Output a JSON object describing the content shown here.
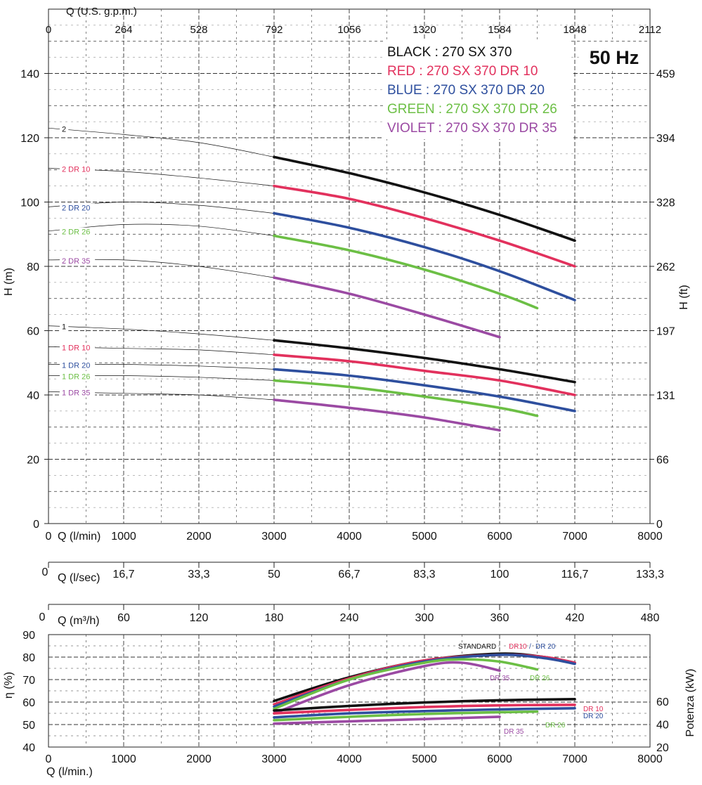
{
  "chart_data": {
    "type": "line",
    "title": "50 Hz",
    "legend": [
      {
        "text": "BLACK : 270 SX 370",
        "color": "#111111"
      },
      {
        "text": "RED : 270 SX 370 DR 10",
        "color": "#e2315d"
      },
      {
        "text": "BLUE : 270 SX 370 DR 20",
        "color": "#2e4f9e"
      },
      {
        "text": "GREEN : 270 SX 370 DR 26",
        "color": "#6cbf45"
      },
      {
        "text": "VIOLET : 270 SX 370 DR 35",
        "color": "#9b4aa3"
      }
    ],
    "axes": {
      "q_lmin": {
        "label": "Q (l/min)",
        "range": [
          0,
          8000
        ],
        "ticks": [
          "0",
          "1000",
          "2000",
          "3000",
          "4000",
          "5000",
          "6000",
          "7000",
          "8000"
        ]
      },
      "q_usgpm": {
        "label": "Q (U.S. g.p.m.)",
        "ticks": [
          "0",
          "264",
          "528",
          "792",
          "1056",
          "1320",
          "1584",
          "1848",
          "2112"
        ]
      },
      "q_lsec": {
        "label": "Q (l/sec)",
        "ticks": [
          "16,7",
          "33,3",
          "50",
          "66,7",
          "83,3",
          "100",
          "116,7",
          "133,3"
        ]
      },
      "q_m3h": {
        "label": "Q (m³/h)",
        "ticks": [
          "60",
          "120",
          "180",
          "240",
          "300",
          "360",
          "420",
          "480"
        ]
      },
      "h_m": {
        "label": "H (m)",
        "range": [
          0,
          150
        ],
        "ticks": [
          "0",
          "20",
          "40",
          "60",
          "80",
          "100",
          "120",
          "140"
        ]
      },
      "h_ft": {
        "label": "H (ft)",
        "ticks": [
          "0",
          "66",
          "131",
          "197",
          "262",
          "328",
          "394",
          "459"
        ]
      },
      "eff": {
        "label": "η (%)",
        "range": [
          40,
          90
        ],
        "ticks": [
          "40",
          "50",
          "60",
          "70",
          "80",
          "90"
        ]
      },
      "power": {
        "label": "Potenza (kW)",
        "ticks": [
          "20",
          "40",
          "60"
        ]
      },
      "bottom_q": {
        "label": "Q (l/min.)",
        "ticks": [
          "0",
          "1000",
          "2000",
          "3000",
          "4000",
          "5000",
          "6000",
          "7000",
          "8000"
        ]
      }
    },
    "head_curves": [
      {
        "label": "2",
        "color": "#111111",
        "q": [
          0,
          1000,
          2000,
          3000,
          4000,
          5000,
          6000,
          7000
        ],
        "h": [
          123,
          121,
          118.5,
          114,
          109,
          103,
          96,
          88
        ]
      },
      {
        "label": "2 DR 10",
        "color": "#e2315d",
        "q": [
          0,
          1000,
          2000,
          3000,
          4000,
          5000,
          6000,
          7000
        ],
        "h": [
          110.5,
          109.5,
          107.5,
          105,
          101,
          95,
          88,
          80
        ]
      },
      {
        "label": "2 DR 20",
        "color": "#2e4f9e",
        "q": [
          0,
          1000,
          2000,
          3000,
          4000,
          5000,
          6000,
          7000
        ],
        "h": [
          98.5,
          100,
          99,
          96.5,
          92,
          86,
          78.5,
          69.5
        ]
      },
      {
        "label": "2 DR 26",
        "color": "#6cbf45",
        "q": [
          0,
          1000,
          2000,
          3000,
          4000,
          5000,
          6000,
          6500
        ],
        "h": [
          91,
          93,
          92.5,
          89.5,
          85,
          79,
          71.5,
          67
        ]
      },
      {
        "label": "2 DR 35",
        "color": "#9b4aa3",
        "q": [
          0,
          1000,
          2000,
          3000,
          4000,
          5000,
          6000
        ],
        "h": [
          82,
          82,
          80,
          76.5,
          71.5,
          65,
          58
        ]
      },
      {
        "label": "1",
        "color": "#111111",
        "q": [
          0,
          1000,
          2000,
          3000,
          4000,
          5000,
          6000,
          7000
        ],
        "h": [
          61.5,
          60.5,
          59,
          57,
          54.5,
          51.5,
          48,
          44
        ]
      },
      {
        "label": "1 DR 10",
        "color": "#e2315d",
        "q": [
          0,
          1000,
          2000,
          3000,
          4000,
          5000,
          6000,
          7000
        ],
        "h": [
          55,
          54.5,
          54,
          52.5,
          50.5,
          47.5,
          44.5,
          40
        ]
      },
      {
        "label": "1 DR 20",
        "color": "#2e4f9e",
        "q": [
          0,
          1000,
          2000,
          3000,
          4000,
          5000,
          6000,
          7000
        ],
        "h": [
          49.5,
          49.5,
          49,
          48,
          46,
          43,
          39.5,
          35
        ]
      },
      {
        "label": "1 DR 26",
        "color": "#6cbf45",
        "q": [
          0,
          1000,
          2000,
          3000,
          4000,
          5000,
          6000,
          6500
        ],
        "h": [
          46,
          46,
          45.5,
          44.5,
          42.5,
          39.5,
          36,
          33.5
        ]
      },
      {
        "label": "1 DR 35",
        "color": "#9b4aa3",
        "q": [
          0,
          1000,
          2000,
          3000,
          4000,
          5000,
          6000
        ],
        "h": [
          41,
          40.5,
          40,
          38.5,
          36,
          33,
          29
        ]
      }
    ],
    "efficiency_curves": [
      {
        "label": "STANDARD",
        "color": "#111111",
        "q": [
          3000,
          4000,
          5000,
          6000,
          6600,
          7000
        ],
        "eta": [
          60.5,
          71,
          78.5,
          81.5,
          80,
          77.5
        ]
      },
      {
        "label": "DR10",
        "color": "#e2315d",
        "q": [
          3000,
          4000,
          5000,
          6000,
          6600,
          7000
        ],
        "eta": [
          59,
          70.5,
          78.5,
          81,
          80,
          77.5
        ]
      },
      {
        "label": "DR 20",
        "color": "#2e4f9e",
        "q": [
          3000,
          4000,
          5000,
          6000,
          6600,
          7000
        ],
        "eta": [
          58,
          70,
          78,
          81,
          79.5,
          77
        ]
      },
      {
        "label": "DR 26",
        "color": "#6cbf45",
        "q": [
          3000,
          4000,
          5000,
          5500,
          6000,
          6500
        ],
        "eta": [
          57,
          70,
          77.5,
          79,
          78,
          74.5
        ]
      },
      {
        "label": "DR 35",
        "color": "#9b4aa3",
        "q": [
          3000,
          4000,
          5000,
          5500,
          6000
        ],
        "eta": [
          55,
          67.5,
          76,
          77.5,
          74
        ]
      }
    ],
    "power_curves": [
      {
        "label": "STANDARD",
        "color": "#111111",
        "q": [
          3000,
          4000,
          5000,
          6000,
          7000
        ],
        "p": [
          52,
          56,
          59,
          61,
          62
        ]
      },
      {
        "label": "DR 10",
        "color": "#e2315d",
        "q": [
          3000,
          4000,
          5000,
          6000,
          7000
        ],
        "p": [
          49.5,
          52.5,
          55,
          56.5,
          57
        ]
      },
      {
        "label": "DR 20",
        "color": "#2e4f9e",
        "q": [
          3000,
          4000,
          5000,
          6000,
          7000
        ],
        "p": [
          46,
          49.5,
          51.5,
          53,
          54
        ]
      },
      {
        "label": "DR 26",
        "color": "#6cbf45",
        "q": [
          3000,
          4000,
          5000,
          6000,
          6500
        ],
        "p": [
          43.5,
          46.5,
          49,
          50.5,
          51
        ]
      },
      {
        "label": "DR 35",
        "color": "#9b4aa3",
        "q": [
          3000,
          4000,
          5000,
          6000
        ],
        "p": [
          40.5,
          42.5,
          44.5,
          46.5
        ]
      }
    ],
    "eff_labels": {
      "standard": "STANDARD",
      "dr10": "DR10",
      "slash": "/",
      "dr20": "DR 20",
      "dr35": "DR 35",
      "dr26": "DR 26"
    },
    "power_labels": {
      "dr10": "DR 10",
      "dr20": "DR 20",
      "dr26": "DR 26",
      "dr35": "DR 35"
    }
  }
}
